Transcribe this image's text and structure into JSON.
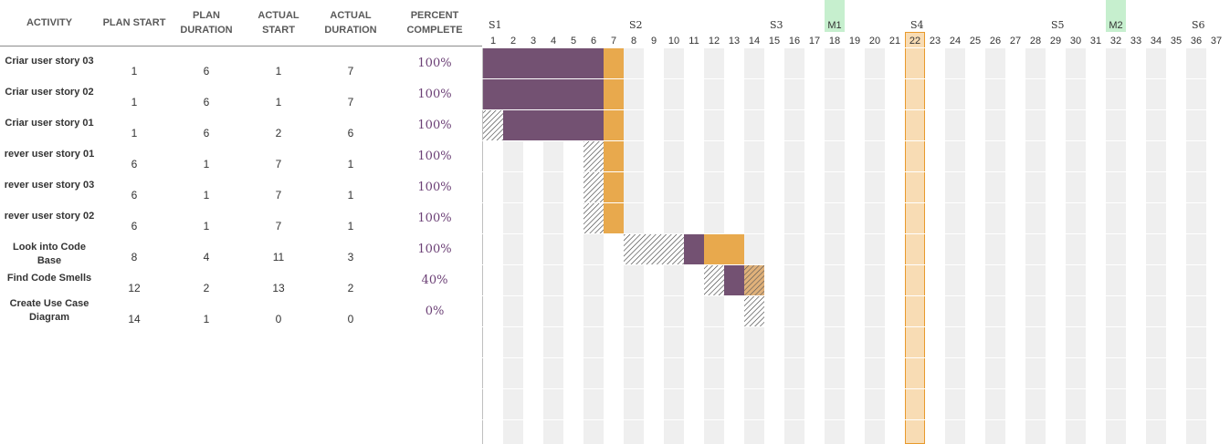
{
  "headers": {
    "activity": "ACTIVITY",
    "plan_start": "PLAN START",
    "plan_duration": [
      "PLAN",
      "DURATION"
    ],
    "actual_start": "ACTUAL START",
    "actual_duration": [
      "ACTUAL",
      "DURATION"
    ],
    "percent_complete": "PERCENT COMPLETE"
  },
  "chart_data": {
    "type": "gantt",
    "periods": [
      1,
      2,
      3,
      4,
      5,
      6,
      7,
      8,
      9,
      10,
      11,
      12,
      13,
      14,
      15,
      16,
      17,
      18,
      19,
      20,
      21,
      22,
      23,
      24,
      25,
      26,
      27,
      28,
      29,
      30,
      31,
      32,
      33,
      34,
      35,
      36,
      37
    ],
    "highlight_period": 22,
    "sprints": [
      {
        "label": "S1",
        "period": 1
      },
      {
        "label": "S2",
        "period": 8
      },
      {
        "label": "S3",
        "period": 15
      },
      {
        "label": "S4",
        "period": 22
      },
      {
        "label": "S5",
        "period": 29
      },
      {
        "label": "S6",
        "period": 36
      }
    ],
    "milestones": [
      {
        "label": "M1",
        "period": 18
      },
      {
        "label": "M2",
        "period": 32
      }
    ],
    "activities": [
      {
        "name": [
          "Criar user story 03"
        ],
        "plan_start": 1,
        "plan_duration": 6,
        "actual_start": 1,
        "actual_duration": 7,
        "percent": "100%"
      },
      {
        "name": [
          "Criar user story 02"
        ],
        "plan_start": 1,
        "plan_duration": 6,
        "actual_start": 1,
        "actual_duration": 7,
        "percent": "100%"
      },
      {
        "name": [
          "Criar user story 01"
        ],
        "plan_start": 1,
        "plan_duration": 6,
        "actual_start": 2,
        "actual_duration": 6,
        "percent": "100%"
      },
      {
        "name": [
          "rever user story 01"
        ],
        "plan_start": 6,
        "plan_duration": 1,
        "actual_start": 7,
        "actual_duration": 1,
        "percent": "100%"
      },
      {
        "name": [
          "rever user story 03"
        ],
        "plan_start": 6,
        "plan_duration": 1,
        "actual_start": 7,
        "actual_duration": 1,
        "percent": "100%"
      },
      {
        "name": [
          "rever user story 02"
        ],
        "plan_start": 6,
        "plan_duration": 1,
        "actual_start": 7,
        "actual_duration": 1,
        "percent": "100%"
      },
      {
        "name": [
          "Look into Code Base"
        ],
        "plan_start": 8,
        "plan_duration": 4,
        "actual_start": 11,
        "actual_duration": 3,
        "percent": "100%"
      },
      {
        "name": [
          "Find Code Smells"
        ],
        "plan_start": 12,
        "plan_duration": 2,
        "actual_start": 13,
        "actual_duration": 2,
        "percent": "40%"
      },
      {
        "name": [
          "Create Use Case",
          "Diagram"
        ],
        "plan_start": 14,
        "plan_duration": 1,
        "actual_start": 0,
        "actual_duration": 0,
        "percent": "0%"
      }
    ],
    "colors": {
      "actual": "#735172",
      "overrun": "#e8a94d",
      "overrun_incomplete": "#e0b17a",
      "highlight_fill": "#f8dcb4",
      "highlight_border": "#e89a2c",
      "milestone": "#c6efce",
      "stripe_bg": "#efefef"
    }
  }
}
